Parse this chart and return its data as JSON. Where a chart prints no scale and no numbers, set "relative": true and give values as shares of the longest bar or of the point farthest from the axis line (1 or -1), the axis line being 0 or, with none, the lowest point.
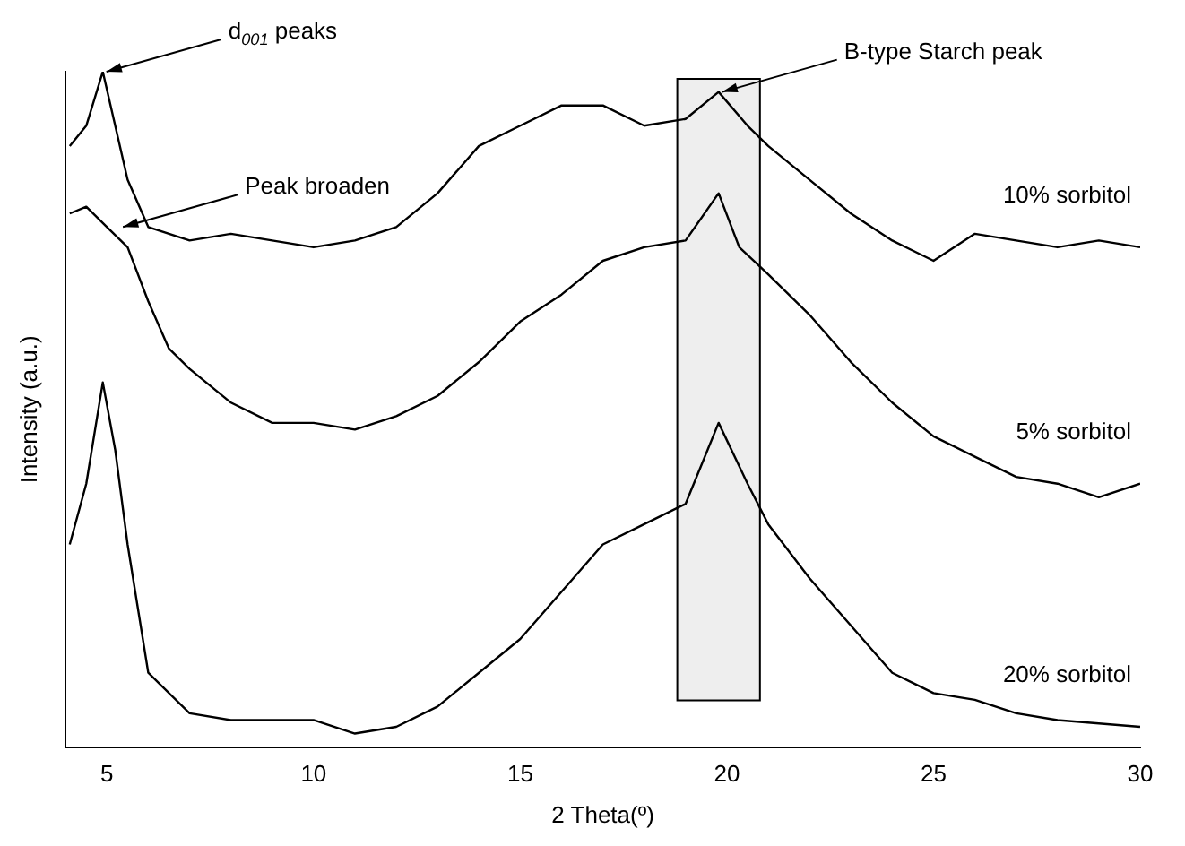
{
  "chart_data": {
    "type": "line",
    "xlabel": "2 Theta(º)",
    "ylabel": "Intensity (a.u.)",
    "relative": true,
    "xlim": [
      4,
      30
    ],
    "xticks": [
      5,
      10,
      15,
      20,
      25,
      30
    ],
    "grid": false,
    "legend": false,
    "marker": "none",
    "line_style": "solid",
    "series": [
      {
        "name": "10% sorbitol",
        "color": "#000000",
        "x": [
          4.1,
          4.5,
          4.9,
          5.2,
          5.5,
          6,
          7,
          8,
          9,
          10,
          11,
          12,
          13,
          14,
          15,
          16,
          17,
          18,
          19,
          19.8,
          20.5,
          21,
          22,
          23,
          24,
          25,
          26,
          27,
          28,
          29,
          30
        ],
        "values": [
          0.89,
          0.92,
          1.0,
          0.92,
          0.84,
          0.77,
          0.75,
          0.76,
          0.75,
          0.74,
          0.75,
          0.77,
          0.82,
          0.89,
          0.92,
          0.95,
          0.95,
          0.92,
          0.93,
          0.97,
          0.92,
          0.89,
          0.84,
          0.79,
          0.75,
          0.72,
          0.76,
          0.75,
          0.74,
          0.75,
          0.74
        ]
      },
      {
        "name": "5% sorbitol",
        "color": "#000000",
        "x": [
          4.1,
          4.5,
          5,
          5.5,
          6,
          6.5,
          7,
          8,
          9,
          10,
          11,
          12,
          13,
          14,
          15,
          16,
          17,
          18,
          19,
          19.8,
          20.3,
          21,
          22,
          23,
          24,
          25,
          26,
          27,
          28,
          29,
          30
        ],
        "values": [
          0.79,
          0.8,
          0.77,
          0.74,
          0.66,
          0.59,
          0.56,
          0.51,
          0.48,
          0.48,
          0.47,
          0.49,
          0.52,
          0.57,
          0.63,
          0.67,
          0.72,
          0.74,
          0.75,
          0.82,
          0.74,
          0.7,
          0.64,
          0.57,
          0.51,
          0.46,
          0.43,
          0.4,
          0.39,
          0.37,
          0.39
        ]
      },
      {
        "name": "20% sorbitol",
        "color": "#000000",
        "x": [
          4.1,
          4.5,
          4.9,
          5.2,
          5.5,
          6,
          7,
          8,
          9,
          10,
          11,
          12,
          13,
          14,
          15,
          16,
          17,
          18,
          19,
          19.8,
          20.5,
          21,
          22,
          23,
          24,
          25,
          26,
          27,
          28,
          30
        ],
        "values": [
          0.3,
          0.39,
          0.54,
          0.44,
          0.3,
          0.11,
          0.05,
          0.04,
          0.04,
          0.04,
          0.02,
          0.03,
          0.06,
          0.11,
          0.16,
          0.23,
          0.3,
          0.33,
          0.36,
          0.48,
          0.39,
          0.33,
          0.25,
          0.18,
          0.11,
          0.08,
          0.07,
          0.05,
          0.04,
          0.03
        ]
      }
    ],
    "bands": [
      {
        "axis": "x",
        "from": 18.8,
        "to": 20.8
      }
    ],
    "annotations": [
      {
        "text": "d$_{001}$ peaks",
        "x": 4.9,
        "y": 1.0
      },
      {
        "text": "B-type Starch peak",
        "x": 19.8,
        "y": 0.97
      },
      {
        "text": "Peak broaden",
        "x": 5.3,
        "y": 0.77
      }
    ]
  }
}
